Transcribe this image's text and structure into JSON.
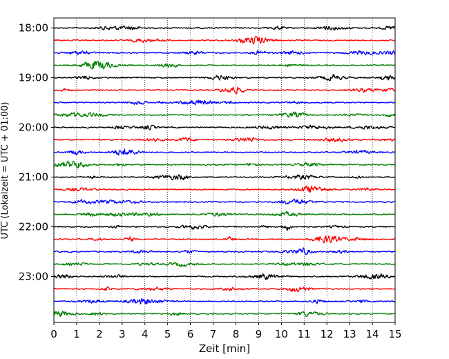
{
  "chart_data": {
    "type": "line",
    "xlabel": "Zeit  [min]",
    "ylabel": "UTC (Lokalzeit = UTC + 01:00)",
    "xlim": [
      0,
      15
    ],
    "x_ticks": [
      "0",
      "1",
      "2",
      "3",
      "4",
      "5",
      "6",
      "7",
      "8",
      "9",
      "10",
      "11",
      "12",
      "13",
      "14",
      "15"
    ],
    "y_tick_labels": [
      "18:00",
      "19:00",
      "20:00",
      "21:00",
      "22:00",
      "23:00"
    ],
    "y_tick_hours": [
      18,
      19,
      20,
      21,
      22,
      23
    ],
    "trace_start_hour": 18,
    "trace_interval_min": 15,
    "trace_count": 24,
    "trace_colors": [
      "#000000",
      "#ff0000",
      "#0000ff",
      "#008000"
    ],
    "vertical_grid": true,
    "grid_style": "dotted",
    "legend": "none"
  }
}
